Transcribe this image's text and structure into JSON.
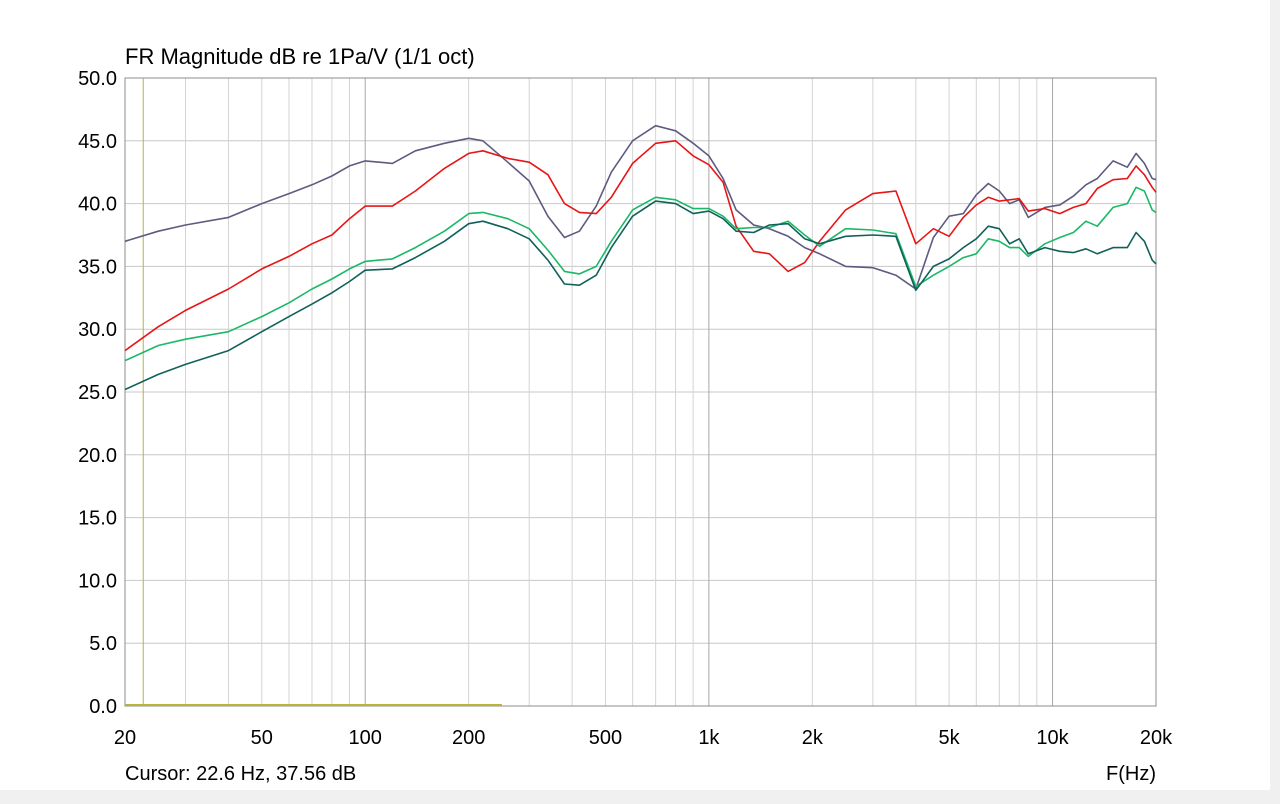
{
  "chart_data": {
    "type": "line",
    "title": "FR Magnitude dB re 1Pa/V (1/1 oct)",
    "xlabel": "F(Hz)",
    "ylabel": "",
    "x_scale": "log",
    "xlim": [
      20,
      20000
    ],
    "ylim": [
      0,
      50
    ],
    "grid": true,
    "y_ticks": [
      "50.0",
      "45.0",
      "40.0",
      "35.0",
      "30.0",
      "25.0",
      "20.0",
      "15.0",
      "10.0",
      "5.0",
      "0.0"
    ],
    "x_ticks": [
      {
        "value": 20,
        "label": "20"
      },
      {
        "value": 50,
        "label": "50"
      },
      {
        "value": 100,
        "label": "100"
      },
      {
        "value": 200,
        "label": "200"
      },
      {
        "value": 500,
        "label": "500"
      },
      {
        "value": 1000,
        "label": "1k"
      },
      {
        "value": 2000,
        "label": "2k"
      },
      {
        "value": 5000,
        "label": "5k"
      },
      {
        "value": 10000,
        "label": "10k"
      },
      {
        "value": 20000,
        "label": "20k"
      }
    ],
    "cursor": {
      "freq": 22.6,
      "text": "Cursor: 22.6 Hz, 37.56 dB",
      "marker_end_freq": 250,
      "color": "#b8b43a"
    },
    "series": [
      {
        "color": "#5e5a80",
        "points": [
          [
            20,
            37.0
          ],
          [
            25,
            37.8
          ],
          [
            30,
            38.3
          ],
          [
            40,
            38.9
          ],
          [
            50,
            40.0
          ],
          [
            60,
            40.8
          ],
          [
            70,
            41.5
          ],
          [
            80,
            42.2
          ],
          [
            90,
            43.0
          ],
          [
            100,
            43.4
          ],
          [
            120,
            43.2
          ],
          [
            140,
            44.2
          ],
          [
            170,
            44.8
          ],
          [
            200,
            45.2
          ],
          [
            220,
            45.0
          ],
          [
            260,
            43.3
          ],
          [
            300,
            41.8
          ],
          [
            340,
            39.0
          ],
          [
            380,
            37.3
          ],
          [
            420,
            37.8
          ],
          [
            470,
            39.8
          ],
          [
            520,
            42.5
          ],
          [
            600,
            45.0
          ],
          [
            700,
            46.2
          ],
          [
            800,
            45.8
          ],
          [
            900,
            44.8
          ],
          [
            1000,
            43.8
          ],
          [
            1100,
            42.0
          ],
          [
            1200,
            39.5
          ],
          [
            1350,
            38.3
          ],
          [
            1500,
            38.0
          ],
          [
            1700,
            37.4
          ],
          [
            1900,
            36.5
          ],
          [
            2100,
            36.0
          ],
          [
            2500,
            35.0
          ],
          [
            3000,
            34.9
          ],
          [
            3500,
            34.3
          ],
          [
            4000,
            33.2
          ],
          [
            4500,
            37.3
          ],
          [
            5000,
            39.0
          ],
          [
            5500,
            39.2
          ],
          [
            6000,
            40.7
          ],
          [
            6500,
            41.6
          ],
          [
            7000,
            41.0
          ],
          [
            7500,
            40.0
          ],
          [
            8000,
            40.3
          ],
          [
            8500,
            38.9
          ],
          [
            9500,
            39.7
          ],
          [
            10500,
            39.9
          ],
          [
            11500,
            40.6
          ],
          [
            12500,
            41.5
          ],
          [
            13500,
            42.0
          ],
          [
            15000,
            43.4
          ],
          [
            16500,
            42.9
          ],
          [
            17500,
            44.0
          ],
          [
            18500,
            43.2
          ],
          [
            19500,
            42.0
          ],
          [
            20000,
            41.9
          ]
        ]
      },
      {
        "color": "#e81515",
        "points": [
          [
            20,
            28.3
          ],
          [
            25,
            30.2
          ],
          [
            30,
            31.5
          ],
          [
            40,
            33.2
          ],
          [
            50,
            34.8
          ],
          [
            60,
            35.8
          ],
          [
            70,
            36.8
          ],
          [
            80,
            37.5
          ],
          [
            90,
            38.8
          ],
          [
            100,
            39.8
          ],
          [
            120,
            39.8
          ],
          [
            140,
            41.0
          ],
          [
            170,
            42.8
          ],
          [
            200,
            44.0
          ],
          [
            220,
            44.2
          ],
          [
            260,
            43.6
          ],
          [
            300,
            43.3
          ],
          [
            340,
            42.3
          ],
          [
            380,
            40.0
          ],
          [
            420,
            39.3
          ],
          [
            470,
            39.2
          ],
          [
            520,
            40.5
          ],
          [
            600,
            43.2
          ],
          [
            700,
            44.8
          ],
          [
            800,
            45.0
          ],
          [
            900,
            43.8
          ],
          [
            1000,
            43.1
          ],
          [
            1100,
            41.7
          ],
          [
            1200,
            38.2
          ],
          [
            1350,
            36.2
          ],
          [
            1500,
            36.0
          ],
          [
            1700,
            34.6
          ],
          [
            1900,
            35.3
          ],
          [
            2100,
            37.0
          ],
          [
            2500,
            39.5
          ],
          [
            3000,
            40.8
          ],
          [
            3500,
            41.0
          ],
          [
            4000,
            36.8
          ],
          [
            4500,
            38.0
          ],
          [
            5000,
            37.4
          ],
          [
            5500,
            38.9
          ],
          [
            6000,
            39.9
          ],
          [
            6500,
            40.5
          ],
          [
            7000,
            40.2
          ],
          [
            7500,
            40.3
          ],
          [
            8000,
            40.4
          ],
          [
            8500,
            39.4
          ],
          [
            9500,
            39.6
          ],
          [
            10500,
            39.2
          ],
          [
            11500,
            39.7
          ],
          [
            12500,
            40.0
          ],
          [
            13500,
            41.2
          ],
          [
            15000,
            41.9
          ],
          [
            16500,
            42.0
          ],
          [
            17500,
            43.0
          ],
          [
            18500,
            42.3
          ],
          [
            19500,
            41.3
          ],
          [
            20000,
            40.9
          ]
        ]
      },
      {
        "color": "#1ab867",
        "points": [
          [
            20,
            27.5
          ],
          [
            25,
            28.7
          ],
          [
            30,
            29.2
          ],
          [
            40,
            29.8
          ],
          [
            50,
            31.0
          ],
          [
            60,
            32.1
          ],
          [
            70,
            33.2
          ],
          [
            80,
            34.0
          ],
          [
            90,
            34.8
          ],
          [
            100,
            35.4
          ],
          [
            120,
            35.6
          ],
          [
            140,
            36.5
          ],
          [
            170,
            37.8
          ],
          [
            200,
            39.2
          ],
          [
            220,
            39.3
          ],
          [
            260,
            38.8
          ],
          [
            300,
            38.0
          ],
          [
            340,
            36.3
          ],
          [
            380,
            34.6
          ],
          [
            420,
            34.4
          ],
          [
            470,
            35.0
          ],
          [
            520,
            37.0
          ],
          [
            600,
            39.5
          ],
          [
            700,
            40.5
          ],
          [
            800,
            40.3
          ],
          [
            900,
            39.6
          ],
          [
            1000,
            39.6
          ],
          [
            1100,
            39.0
          ],
          [
            1200,
            38.0
          ],
          [
            1350,
            38.1
          ],
          [
            1500,
            38.1
          ],
          [
            1700,
            38.6
          ],
          [
            1900,
            37.5
          ],
          [
            2100,
            36.6
          ],
          [
            2500,
            38.0
          ],
          [
            3000,
            37.9
          ],
          [
            3500,
            37.6
          ],
          [
            4000,
            33.4
          ],
          [
            4500,
            34.3
          ],
          [
            5000,
            35.0
          ],
          [
            5500,
            35.7
          ],
          [
            6000,
            36.0
          ],
          [
            6500,
            37.2
          ],
          [
            7000,
            37.0
          ],
          [
            7500,
            36.5
          ],
          [
            8000,
            36.5
          ],
          [
            8500,
            35.8
          ],
          [
            9500,
            36.8
          ],
          [
            10500,
            37.3
          ],
          [
            11500,
            37.7
          ],
          [
            12500,
            38.6
          ],
          [
            13500,
            38.2
          ],
          [
            15000,
            39.7
          ],
          [
            16500,
            40.0
          ],
          [
            17500,
            41.3
          ],
          [
            18500,
            41.0
          ],
          [
            19500,
            39.5
          ],
          [
            20000,
            39.3
          ]
        ]
      },
      {
        "color": "#10615a",
        "points": [
          [
            20,
            25.2
          ],
          [
            25,
            26.4
          ],
          [
            30,
            27.2
          ],
          [
            40,
            28.3
          ],
          [
            50,
            29.8
          ],
          [
            60,
            31.0
          ],
          [
            70,
            32.0
          ],
          [
            80,
            32.9
          ],
          [
            90,
            33.8
          ],
          [
            100,
            34.7
          ],
          [
            120,
            34.8
          ],
          [
            140,
            35.7
          ],
          [
            170,
            37.0
          ],
          [
            200,
            38.4
          ],
          [
            220,
            38.6
          ],
          [
            260,
            38.0
          ],
          [
            300,
            37.2
          ],
          [
            340,
            35.5
          ],
          [
            380,
            33.6
          ],
          [
            420,
            33.5
          ],
          [
            470,
            34.3
          ],
          [
            520,
            36.5
          ],
          [
            600,
            39.0
          ],
          [
            700,
            40.2
          ],
          [
            800,
            40.0
          ],
          [
            900,
            39.2
          ],
          [
            1000,
            39.4
          ],
          [
            1100,
            38.8
          ],
          [
            1200,
            37.8
          ],
          [
            1350,
            37.7
          ],
          [
            1500,
            38.3
          ],
          [
            1700,
            38.4
          ],
          [
            1900,
            37.2
          ],
          [
            2100,
            36.8
          ],
          [
            2500,
            37.4
          ],
          [
            3000,
            37.5
          ],
          [
            3500,
            37.4
          ],
          [
            4000,
            33.1
          ],
          [
            4500,
            35.0
          ],
          [
            5000,
            35.6
          ],
          [
            5500,
            36.5
          ],
          [
            6000,
            37.2
          ],
          [
            6500,
            38.2
          ],
          [
            7000,
            38.0
          ],
          [
            7500,
            36.8
          ],
          [
            8000,
            37.2
          ],
          [
            8500,
            36.0
          ],
          [
            9500,
            36.5
          ],
          [
            10500,
            36.2
          ],
          [
            11500,
            36.1
          ],
          [
            12500,
            36.4
          ],
          [
            13500,
            36.0
          ],
          [
            15000,
            36.5
          ],
          [
            16500,
            36.5
          ],
          [
            17500,
            37.7
          ],
          [
            18500,
            37.0
          ],
          [
            19500,
            35.5
          ],
          [
            20000,
            35.2
          ]
        ]
      }
    ]
  }
}
